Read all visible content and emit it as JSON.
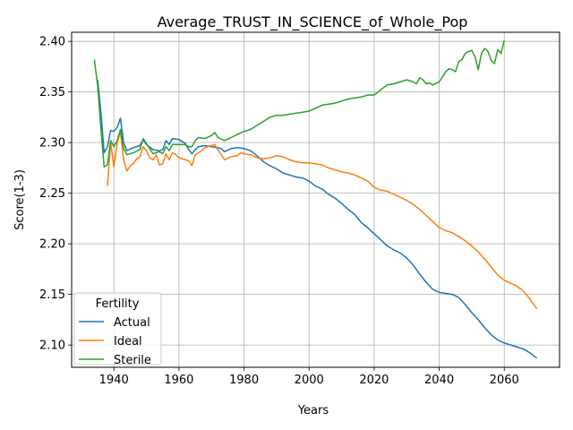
{
  "chart_data": {
    "type": "line",
    "title": "Average_TRUST_IN_SCIENCE_of_Whole_Pop",
    "xlabel": "Years",
    "ylabel": "Score(1-3)",
    "xlim": [
      1927,
      2077
    ],
    "ylim": [
      2.078,
      2.409
    ],
    "xticks": [
      1940,
      1960,
      1980,
      2000,
      2020,
      2040,
      2060
    ],
    "yticks": [
      2.1,
      2.15,
      2.2,
      2.25,
      2.3,
      2.35,
      2.4
    ],
    "xtick_labels": [
      "1940",
      "1960",
      "1980",
      "2000",
      "2020",
      "2040",
      "2060"
    ],
    "ytick_labels": [
      "2.10",
      "2.15",
      "2.20",
      "2.25",
      "2.30",
      "2.35",
      "2.40"
    ],
    "grid": true,
    "legend": {
      "title": "Fertility",
      "placement": "lower-left"
    },
    "series": [
      {
        "name": "Actual",
        "color": "#1f77b4",
        "points": [
          [
            1935,
            2.362
          ],
          [
            1936,
            2.33
          ],
          [
            1937,
            2.29
          ],
          [
            1938,
            2.296
          ],
          [
            1939,
            2.312
          ],
          [
            1940,
            2.311
          ],
          [
            1941,
            2.315
          ],
          [
            1942,
            2.324
          ],
          [
            1943,
            2.3
          ],
          [
            1944,
            2.292
          ],
          [
            1946,
            2.295
          ],
          [
            1948,
            2.297
          ],
          [
            1949,
            2.303
          ],
          [
            1950,
            2.298
          ],
          [
            1952,
            2.293
          ],
          [
            1954,
            2.292
          ],
          [
            1955,
            2.293
          ],
          [
            1956,
            2.302
          ],
          [
            1957,
            2.298
          ],
          [
            1958,
            2.304
          ],
          [
            1960,
            2.303
          ],
          [
            1962,
            2.299
          ],
          [
            1963,
            2.293
          ],
          [
            1964,
            2.289
          ],
          [
            1965,
            2.293
          ],
          [
            1966,
            2.296
          ],
          [
            1968,
            2.297
          ],
          [
            1970,
            2.296
          ],
          [
            1972,
            2.295
          ],
          [
            1973,
            2.294
          ],
          [
            1974,
            2.291
          ],
          [
            1976,
            2.294
          ],
          [
            1978,
            2.295
          ],
          [
            1980,
            2.294
          ],
          [
            1982,
            2.292
          ],
          [
            1984,
            2.287
          ],
          [
            1986,
            2.281
          ],
          [
            1988,
            2.277
          ],
          [
            1990,
            2.274
          ],
          [
            1992,
            2.27
          ],
          [
            1994,
            2.268
          ],
          [
            1996,
            2.266
          ],
          [
            1998,
            2.265
          ],
          [
            2000,
            2.262
          ],
          [
            2002,
            2.257
          ],
          [
            2004,
            2.254
          ],
          [
            2006,
            2.249
          ],
          [
            2008,
            2.245
          ],
          [
            2010,
            2.24
          ],
          [
            2012,
            2.234
          ],
          [
            2014,
            2.229
          ],
          [
            2016,
            2.221
          ],
          [
            2018,
            2.216
          ],
          [
            2020,
            2.21
          ],
          [
            2022,
            2.204
          ],
          [
            2024,
            2.198
          ],
          [
            2026,
            2.194
          ],
          [
            2028,
            2.191
          ],
          [
            2030,
            2.186
          ],
          [
            2032,
            2.179
          ],
          [
            2034,
            2.17
          ],
          [
            2036,
            2.162
          ],
          [
            2038,
            2.155
          ],
          [
            2040,
            2.152
          ],
          [
            2042,
            2.151
          ],
          [
            2044,
            2.15
          ],
          [
            2046,
            2.147
          ],
          [
            2048,
            2.14
          ],
          [
            2050,
            2.132
          ],
          [
            2052,
            2.125
          ],
          [
            2054,
            2.117
          ],
          [
            2056,
            2.11
          ],
          [
            2058,
            2.105
          ],
          [
            2060,
            2.102
          ],
          [
            2062,
            2.1
          ],
          [
            2064,
            2.098
          ],
          [
            2066,
            2.096
          ],
          [
            2068,
            2.092
          ],
          [
            2070,
            2.087
          ]
        ]
      },
      {
        "name": "Ideal",
        "color": "#ff7f0e",
        "points": [
          [
            1938,
            2.257
          ],
          [
            1939,
            2.3
          ],
          [
            1940,
            2.276
          ],
          [
            1941,
            2.3
          ],
          [
            1942,
            2.31
          ],
          [
            1943,
            2.283
          ],
          [
            1944,
            2.272
          ],
          [
            1945,
            2.277
          ],
          [
            1946,
            2.279
          ],
          [
            1947,
            2.284
          ],
          [
            1948,
            2.286
          ],
          [
            1949,
            2.296
          ],
          [
            1950,
            2.292
          ],
          [
            1951,
            2.285
          ],
          [
            1952,
            2.283
          ],
          [
            1953,
            2.288
          ],
          [
            1954,
            2.278
          ],
          [
            1955,
            2.279
          ],
          [
            1956,
            2.289
          ],
          [
            1957,
            2.283
          ],
          [
            1958,
            2.29
          ],
          [
            1959,
            2.288
          ],
          [
            1960,
            2.285
          ],
          [
            1962,
            2.283
          ],
          [
            1963,
            2.282
          ],
          [
            1964,
            2.277
          ],
          [
            1965,
            2.288
          ],
          [
            1966,
            2.29
          ],
          [
            1967,
            2.292
          ],
          [
            1968,
            2.295
          ],
          [
            1970,
            2.297
          ],
          [
            1971,
            2.298
          ],
          [
            1972,
            2.293
          ],
          [
            1974,
            2.283
          ],
          [
            1976,
            2.286
          ],
          [
            1978,
            2.287
          ],
          [
            1979,
            2.29
          ],
          [
            1980,
            2.289
          ],
          [
            1982,
            2.288
          ],
          [
            1984,
            2.285
          ],
          [
            1986,
            2.284
          ],
          [
            1988,
            2.285
          ],
          [
            1990,
            2.287
          ],
          [
            1992,
            2.286
          ],
          [
            1994,
            2.283
          ],
          [
            1996,
            2.281
          ],
          [
            1998,
            2.28
          ],
          [
            2000,
            2.28
          ],
          [
            2002,
            2.279
          ],
          [
            2004,
            2.278
          ],
          [
            2006,
            2.275
          ],
          [
            2008,
            2.273
          ],
          [
            2010,
            2.271
          ],
          [
            2012,
            2.27
          ],
          [
            2014,
            2.268
          ],
          [
            2016,
            2.265
          ],
          [
            2018,
            2.262
          ],
          [
            2020,
            2.256
          ],
          [
            2022,
            2.253
          ],
          [
            2024,
            2.252
          ],
          [
            2026,
            2.249
          ],
          [
            2028,
            2.246
          ],
          [
            2030,
            2.243
          ],
          [
            2032,
            2.239
          ],
          [
            2034,
            2.234
          ],
          [
            2036,
            2.228
          ],
          [
            2038,
            2.222
          ],
          [
            2040,
            2.216
          ],
          [
            2042,
            2.213
          ],
          [
            2044,
            2.211
          ],
          [
            2046,
            2.207
          ],
          [
            2048,
            2.203
          ],
          [
            2050,
            2.198
          ],
          [
            2052,
            2.192
          ],
          [
            2054,
            2.185
          ],
          [
            2056,
            2.177
          ],
          [
            2058,
            2.169
          ],
          [
            2060,
            2.164
          ],
          [
            2062,
            2.161
          ],
          [
            2064,
            2.158
          ],
          [
            2066,
            2.153
          ],
          [
            2068,
            2.145
          ],
          [
            2070,
            2.136
          ]
        ]
      },
      {
        "name": "Sterile",
        "color": "#2ca02c",
        "points": [
          [
            1934,
            2.382
          ],
          [
            1935,
            2.356
          ],
          [
            1936,
            2.314
          ],
          [
            1937,
            2.276
          ],
          [
            1938,
            2.278
          ],
          [
            1939,
            2.302
          ],
          [
            1940,
            2.296
          ],
          [
            1941,
            2.302
          ],
          [
            1942,
            2.313
          ],
          [
            1943,
            2.294
          ],
          [
            1944,
            2.288
          ],
          [
            1946,
            2.29
          ],
          [
            1948,
            2.293
          ],
          [
            1949,
            2.304
          ],
          [
            1950,
            2.299
          ],
          [
            1952,
            2.289
          ],
          [
            1954,
            2.291
          ],
          [
            1955,
            2.289
          ],
          [
            1956,
            2.296
          ],
          [
            1957,
            2.292
          ],
          [
            1958,
            2.298
          ],
          [
            1960,
            2.298
          ],
          [
            1962,
            2.298
          ],
          [
            1963,
            2.296
          ],
          [
            1964,
            2.296
          ],
          [
            1965,
            2.302
          ],
          [
            1966,
            2.305
          ],
          [
            1968,
            2.304
          ],
          [
            1970,
            2.307
          ],
          [
            1971,
            2.31
          ],
          [
            1972,
            2.305
          ],
          [
            1974,
            2.302
          ],
          [
            1976,
            2.305
          ],
          [
            1978,
            2.308
          ],
          [
            1980,
            2.311
          ],
          [
            1982,
            2.313
          ],
          [
            1984,
            2.317
          ],
          [
            1986,
            2.321
          ],
          [
            1988,
            2.325
          ],
          [
            1990,
            2.327
          ],
          [
            1992,
            2.327
          ],
          [
            1994,
            2.328
          ],
          [
            1996,
            2.329
          ],
          [
            1998,
            2.33
          ],
          [
            2000,
            2.331
          ],
          [
            2002,
            2.334
          ],
          [
            2004,
            2.337
          ],
          [
            2006,
            2.338
          ],
          [
            2008,
            2.339
          ],
          [
            2010,
            2.341
          ],
          [
            2012,
            2.343
          ],
          [
            2014,
            2.344
          ],
          [
            2016,
            2.345
          ],
          [
            2018,
            2.347
          ],
          [
            2020,
            2.347
          ],
          [
            2022,
            2.352
          ],
          [
            2024,
            2.357
          ],
          [
            2026,
            2.358
          ],
          [
            2028,
            2.36
          ],
          [
            2030,
            2.362
          ],
          [
            2032,
            2.36
          ],
          [
            2033,
            2.358
          ],
          [
            2034,
            2.364
          ],
          [
            2035,
            2.362
          ],
          [
            2036,
            2.358
          ],
          [
            2037,
            2.359
          ],
          [
            2038,
            2.357
          ],
          [
            2040,
            2.36
          ],
          [
            2041,
            2.365
          ],
          [
            2042,
            2.37
          ],
          [
            2043,
            2.373
          ],
          [
            2044,
            2.372
          ],
          [
            2045,
            2.37
          ],
          [
            2046,
            2.38
          ],
          [
            2047,
            2.382
          ],
          [
            2048,
            2.388
          ],
          [
            2049,
            2.39
          ],
          [
            2050,
            2.391
          ],
          [
            2051,
            2.385
          ],
          [
            2052,
            2.372
          ],
          [
            2053,
            2.388
          ],
          [
            2054,
            2.393
          ],
          [
            2055,
            2.39
          ],
          [
            2056,
            2.381
          ],
          [
            2057,
            2.378
          ],
          [
            2058,
            2.392
          ],
          [
            2059,
            2.388
          ],
          [
            2060,
            2.401
          ]
        ]
      }
    ]
  }
}
